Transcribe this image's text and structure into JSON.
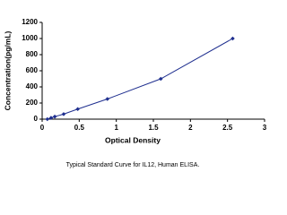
{
  "chart_data": {
    "type": "scatter",
    "x_label": "Optical Density",
    "y_label": "Concentration(pg/mL)",
    "caption": "Typical Standard Curve for IL12, Human ELISA.",
    "series": [
      {
        "color": "#1f2f8f",
        "x": [
          0.07,
          0.12,
          0.17,
          0.29,
          0.48,
          0.88,
          1.6,
          2.57
        ],
        "values": [
          0,
          15.6,
          31.2,
          62.5,
          125,
          250,
          500,
          1000
        ]
      }
    ],
    "line": true,
    "xlim": [
      0,
      3
    ],
    "xticks": [
      0,
      0.5,
      1,
      1.5,
      2,
      2.5,
      3
    ],
    "ylim": [
      0,
      1200
    ],
    "yticks": [
      0,
      200,
      400,
      600,
      800,
      1000,
      1200
    ],
    "grid": false
  }
}
